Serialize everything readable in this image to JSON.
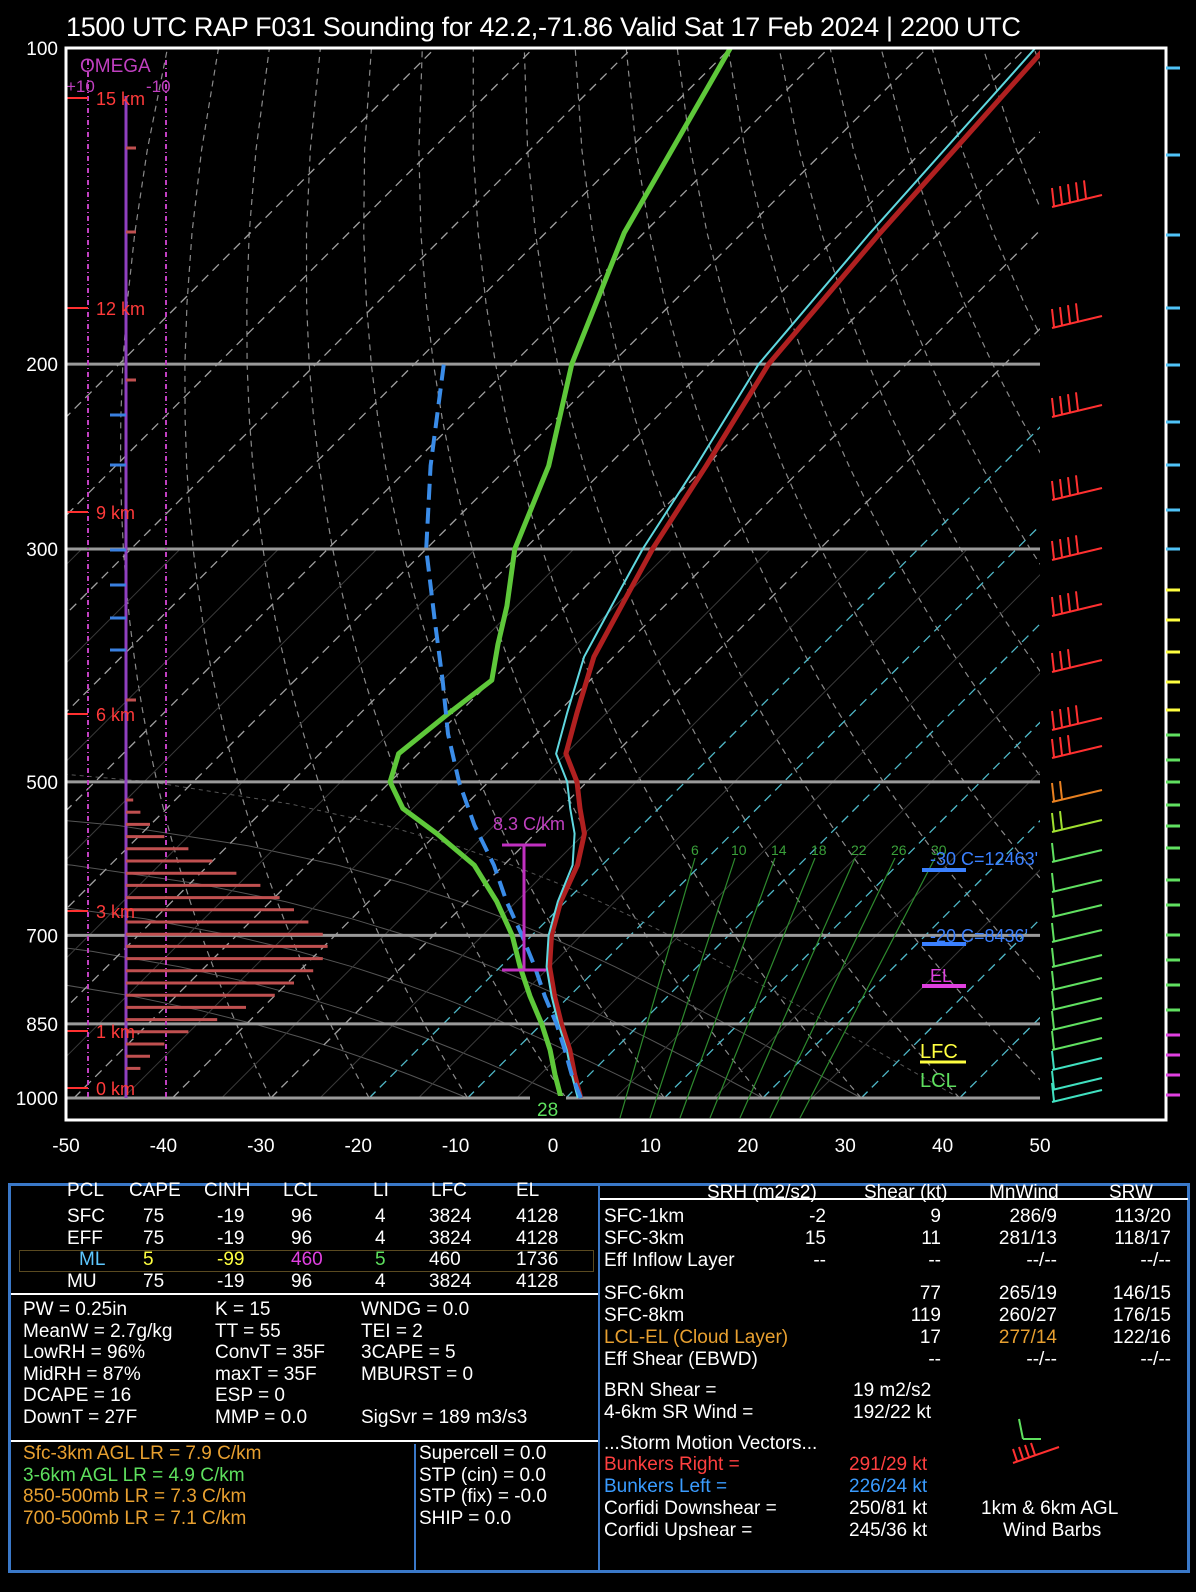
{
  "title": "1500 UTC RAP F031 Sounding for 42.2,-71.86 Valid  Sat 17 Feb 2024 | 2200 UTC",
  "chart_data": {
    "type": "line",
    "title": "1500 UTC RAP F031 Sounding for 42.2,-71.86 Valid  Sat 17 Feb 2024 | 2200 UTC",
    "x_ticks": [
      "-50",
      "-40",
      "-30",
      "-20",
      "-10",
      "0",
      "10",
      "20",
      "30",
      "40",
      "50"
    ],
    "y_ticks": [
      "100",
      "200",
      "300",
      "500",
      "700",
      "850",
      "1000"
    ],
    "height_labels": [
      "15 km",
      "12 km",
      "9 km",
      "6 km",
      "3 km",
      "1 km",
      "0 km"
    ],
    "omega_label": "OMEGA",
    "omega_ticks": [
      "+10",
      "-10"
    ],
    "lapse_rate_label": "8.3 C/km",
    "surface_temp_label": "28",
    "mixing_ratio_labels": [
      "6",
      "10",
      "14",
      "18",
      "22",
      "26",
      "30"
    ],
    "markers": {
      "wetbulb_neg30": "-30 C=12463'",
      "wetbulb_neg20": "-20 C=8436'",
      "el": "EL",
      "lfc": "LFC",
      "lcl": "LCL"
    },
    "series": [
      {
        "name": "temperature",
        "color": "#b02020",
        "points": [
          [
            1000,
            1.5
          ],
          [
            950,
            -1.5
          ],
          [
            900,
            -4.5
          ],
          [
            850,
            -8
          ],
          [
            800,
            -11.5
          ],
          [
            750,
            -15
          ],
          [
            700,
            -18
          ],
          [
            650,
            -20.5
          ],
          [
            600,
            -22.5
          ],
          [
            560,
            -25
          ],
          [
            530,
            -28
          ],
          [
            500,
            -31
          ],
          [
            470,
            -35
          ],
          [
            430,
            -38
          ],
          [
            380,
            -42
          ],
          [
            330,
            -45
          ],
          [
            300,
            -47
          ],
          [
            250,
            -50
          ],
          [
            200,
            -54
          ],
          [
            150,
            -56
          ],
          [
            100,
            -58
          ]
        ]
      },
      {
        "name": "virtual temperature",
        "color": "#60d8e0",
        "points": [
          [
            1000,
            1.2
          ],
          [
            950,
            -1.8
          ],
          [
            900,
            -4.8
          ],
          [
            850,
            -8.3
          ],
          [
            800,
            -11.8
          ],
          [
            750,
            -15.3
          ],
          [
            700,
            -18.3
          ],
          [
            650,
            -20.8
          ],
          [
            600,
            -23
          ],
          [
            560,
            -26
          ],
          [
            530,
            -29
          ],
          [
            500,
            -32
          ],
          [
            470,
            -36
          ],
          [
            430,
            -39
          ],
          [
            380,
            -43
          ],
          [
            330,
            -46
          ],
          [
            300,
            -48
          ],
          [
            250,
            -51
          ],
          [
            200,
            -55
          ],
          [
            150,
            -57
          ],
          [
            100,
            -59
          ]
        ]
      },
      {
        "name": "dewpoint",
        "color": "#5ec83a",
        "points": [
          [
            1000,
            -0.5
          ],
          [
            950,
            -3.5
          ],
          [
            900,
            -6.5
          ],
          [
            850,
            -10
          ],
          [
            800,
            -14
          ],
          [
            750,
            -18
          ],
          [
            700,
            -22
          ],
          [
            650,
            -27
          ],
          [
            600,
            -33
          ],
          [
            560,
            -40
          ],
          [
            530,
            -46
          ],
          [
            500,
            -50
          ],
          [
            470,
            -52
          ],
          [
            430,
            -51
          ],
          [
            400,
            -50
          ],
          [
            370,
            -53
          ],
          [
            340,
            -56
          ],
          [
            300,
            -61
          ],
          [
            250,
            -66
          ],
          [
            200,
            -74
          ],
          [
            150,
            -82
          ],
          [
            100,
            -90
          ]
        ]
      },
      {
        "name": "parcel",
        "color": "#3a8ce8",
        "dashed": true,
        "points": [
          [
            1000,
            1.5
          ],
          [
            950,
            -1.8
          ],
          [
            900,
            -5
          ],
          [
            850,
            -8.5
          ],
          [
            800,
            -12.5
          ],
          [
            750,
            -16.5
          ],
          [
            700,
            -21
          ],
          [
            650,
            -26
          ],
          [
            600,
            -31
          ],
          [
            550,
            -37
          ],
          [
            500,
            -43
          ],
          [
            450,
            -49
          ],
          [
            400,
            -55
          ],
          [
            350,
            -62
          ],
          [
            300,
            -70
          ],
          [
            250,
            -78
          ],
          [
            200,
            -87
          ]
        ]
      }
    ],
    "omega_bars": [
      0.3,
      0.6,
      1.0,
      1.6,
      2.6,
      3.6,
      4.6,
      5.6,
      6.4,
      7.0,
      7.6,
      8.2,
      8.4,
      8.2,
      7.8,
      7.0,
      6.2,
      5.0,
      3.8,
      2.6,
      1.6,
      1.0,
      0.6
    ],
    "wind_barbs_kt": [
      45,
      40,
      35,
      40,
      40,
      35,
      30,
      35,
      30,
      20,
      15,
      12,
      10,
      10,
      10,
      10,
      10,
      10,
      10,
      10,
      10,
      10,
      10,
      10,
      10,
      5
    ]
  },
  "params": {
    "table_header": [
      "PCL",
      "CAPE",
      "CINH",
      "LCL",
      "LI",
      "LFC",
      "EL"
    ],
    "table_rows": [
      {
        "pcl": "SFC",
        "cape": "75",
        "cinh": "-19",
        "lcl": "96",
        "li": "4",
        "lfc": "3824",
        "el": "4128"
      },
      {
        "pcl": "EFF",
        "cape": "75",
        "cinh": "-19",
        "lcl": "96",
        "li": "4",
        "lfc": "3824",
        "el": "4128"
      },
      {
        "pcl": "ML",
        "cape": "5",
        "cinh": "-99",
        "lcl": "460",
        "li": "5",
        "lfc": "460",
        "el": "1736"
      },
      {
        "pcl": "MU",
        "cape": "75",
        "cinh": "-19",
        "lcl": "96",
        "li": "4",
        "lfc": "3824",
        "el": "4128"
      }
    ],
    "col1": [
      "PW = 0.25in",
      "MeanW = 2.7g/kg",
      "LowRH = 96%",
      "MidRH = 87%",
      "DCAPE = 16",
      "DownT = 27F"
    ],
    "col2": [
      "K = 15",
      "TT = 55",
      "ConvT = 35F",
      "maxT = 35F",
      "ESP = 0",
      "MMP = 0.0"
    ],
    "col3": [
      "WNDG = 0.0",
      "TEI = 2",
      "3CAPE = 5",
      "MBURST = 0",
      "",
      "SigSvr = 189 m3/s3"
    ],
    "lapse": [
      "Sfc-3km AGL LR = 7.9 C/km",
      "3-6km AGL LR = 4.9 C/km",
      "850-500mb LR = 7.3 C/km",
      "700-500mb LR = 7.1 C/km"
    ],
    "composite": [
      "Supercell = 0.0",
      "STP (cin) = 0.0",
      "STP (fix) = -0.0",
      "SHIP = 0.0"
    ],
    "kin_header": [
      "SRH (m2/s2)",
      "Shear (kt)",
      "MnWind",
      "SRW"
    ],
    "kin_rows": [
      {
        "label": "SFC-1km",
        "srh": "-2",
        "shear": "9",
        "mnwind": "286/9",
        "srw": "113/20"
      },
      {
        "label": "SFC-3km",
        "srh": "15",
        "shear": "11",
        "mnwind": "281/13",
        "srw": "118/17"
      },
      {
        "label": "Eff Inflow Layer",
        "srh": "--",
        "shear": "--",
        "mnwind": "--/--",
        "srw": "--/--"
      },
      {
        "label": "SFC-6km",
        "srh": "",
        "shear": "77",
        "mnwind": "265/19",
        "srw": "146/15"
      },
      {
        "label": "SFC-8km",
        "srh": "",
        "shear": "119",
        "mnwind": "260/27",
        "srw": "176/15"
      },
      {
        "label": "LCL-EL (Cloud Layer)",
        "srh": "",
        "shear": "17",
        "mnwind": "277/14",
        "srw": "122/16"
      },
      {
        "label": "Eff Shear (EBWD)",
        "srh": "",
        "shear": "--",
        "mnwind": "--/--",
        "srw": "--/--"
      }
    ],
    "brn_label": "BRN Shear =",
    "brn_value": "19 m2/s2",
    "srwind_label": "4-6km SR Wind =",
    "srwind_value": "192/22 kt",
    "storm_header": "...Storm Motion Vectors...",
    "br_label": "Bunkers Right =",
    "br_value": "291/29 kt",
    "bl_label": "Bunkers Left =",
    "bl_value": "226/24 kt",
    "cd_label": "Corfidi Downshear =",
    "cd_value": "250/81 kt",
    "cu_label": "Corfidi Upshear =",
    "cu_value": "245/36 kt",
    "barb_caption1": "1km & 6km AGL",
    "barb_caption2": "Wind Barbs"
  }
}
